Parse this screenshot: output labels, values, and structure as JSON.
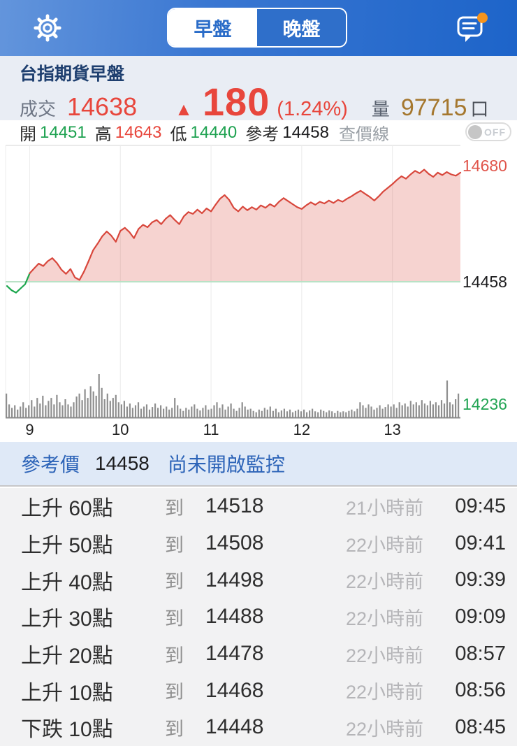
{
  "top_bar": {
    "tabs": [
      {
        "label": "早盤",
        "selected": true
      },
      {
        "label": "晚盤",
        "selected": false
      }
    ],
    "icons": {
      "settings": "gear",
      "messages": "speech-bubble-with-badge"
    }
  },
  "header": {
    "title": "台指期貨早盤",
    "deal_label": "成交",
    "deal_value": "14638",
    "change_arrow": "▲",
    "change_value": "180",
    "change_pct": "(1.24%)",
    "volume_label": "量",
    "volume_value": "97715",
    "volume_unit": "口"
  },
  "stats": {
    "open_label": "開",
    "open": "14451",
    "high_label": "高",
    "high": "14643",
    "low_label": "低",
    "low": "14440",
    "ref_label": "參考",
    "ref": "14458",
    "price_line_label": "查價線",
    "toggle_state": "OFF"
  },
  "chart_data": {
    "type": "area",
    "session_start": "08:45",
    "session_end": "13:45",
    "sample_interval_min": 3,
    "x_ticks": [
      "9",
      "10",
      "11",
      "12",
      "13"
    ],
    "x_tick_minutes": [
      15,
      75,
      135,
      195,
      255
    ],
    "ylim": [
      14236,
      14680
    ],
    "ref_price": 14458,
    "open": 14451,
    "high": 14643,
    "low": 14440,
    "close": 14638,
    "y_labels": [
      {
        "value": "14680",
        "role": "scale-high"
      },
      {
        "value": "14458",
        "role": "reference"
      },
      {
        "value": "14236",
        "role": "scale-low"
      }
    ],
    "prices": [
      14451,
      14444,
      14440,
      14447,
      14454,
      14472,
      14480,
      14488,
      14484,
      14492,
      14497,
      14489,
      14478,
      14471,
      14479,
      14465,
      14461,
      14475,
      14492,
      14510,
      14521,
      14533,
      14541,
      14534,
      14524,
      14542,
      14547,
      14540,
      14530,
      14545,
      14552,
      14548,
      14556,
      14560,
      14553,
      14562,
      14568,
      14560,
      14553,
      14566,
      14573,
      14570,
      14577,
      14571,
      14579,
      14574,
      14585,
      14595,
      14601,
      14593,
      14580,
      14574,
      14582,
      14576,
      14581,
      14577,
      14584,
      14580,
      14586,
      14582,
      14590,
      14596,
      14591,
      14586,
      14581,
      14578,
      14584,
      14589,
      14585,
      14590,
      14587,
      14592,
      14588,
      14593,
      14590,
      14595,
      14599,
      14604,
      14608,
      14603,
      14598,
      14592,
      14599,
      14607,
      14613,
      14619,
      14626,
      14632,
      14628,
      14635,
      14641,
      14637,
      14643,
      14636,
      14631,
      14638,
      14634,
      14639,
      14635,
      14633,
      14638
    ],
    "volumes_normalized": [
      0.55,
      0.3,
      0.22,
      0.28,
      0.18,
      0.25,
      0.35,
      0.22,
      0.28,
      0.4,
      0.25,
      0.45,
      0.32,
      0.5,
      0.28,
      0.38,
      0.45,
      0.3,
      0.52,
      0.35,
      0.28,
      0.42,
      0.3,
      0.25,
      0.35,
      0.48,
      0.55,
      0.4,
      0.65,
      0.45,
      0.72,
      0.6,
      0.5,
      1.0,
      0.68,
      0.42,
      0.55,
      0.38,
      0.45,
      0.52,
      0.35,
      0.3,
      0.38,
      0.25,
      0.32,
      0.22,
      0.28,
      0.35,
      0.2,
      0.25,
      0.3,
      0.18,
      0.24,
      0.32,
      0.22,
      0.28,
      0.2,
      0.25,
      0.18,
      0.22,
      0.45,
      0.28,
      0.2,
      0.15,
      0.22,
      0.18,
      0.25,
      0.3,
      0.2,
      0.16,
      0.22,
      0.28,
      0.18,
      0.2,
      0.28,
      0.35,
      0.22,
      0.3,
      0.18,
      0.25,
      0.32,
      0.2,
      0.15,
      0.22,
      0.35,
      0.25,
      0.18,
      0.2,
      0.15,
      0.12,
      0.18,
      0.15,
      0.22,
      0.18,
      0.25,
      0.15,
      0.2,
      0.12,
      0.16,
      0.2,
      0.14,
      0.18,
      0.12,
      0.15,
      0.18,
      0.14,
      0.18,
      0.12,
      0.16,
      0.2,
      0.14,
      0.12,
      0.18,
      0.15,
      0.12,
      0.16,
      0.14,
      0.1,
      0.15,
      0.12,
      0.14,
      0.12,
      0.15,
      0.18,
      0.14,
      0.2,
      0.35,
      0.28,
      0.22,
      0.3,
      0.25,
      0.18,
      0.22,
      0.28,
      0.2,
      0.24,
      0.3,
      0.25,
      0.3,
      0.22,
      0.35,
      0.28,
      0.32,
      0.25,
      0.38,
      0.3,
      0.35,
      0.28,
      0.4,
      0.32,
      0.28,
      0.38,
      0.3,
      0.35,
      0.28,
      0.4,
      0.32,
      0.85,
      0.35,
      0.3,
      0.42,
      0.55
    ],
    "colors": {
      "line_up": "#d8473c",
      "line_below_ref": "#1ba64d",
      "area_fill": "rgba(217,72,60,0.24)",
      "reference_line": "#b9e2c6",
      "volume_bar": "#8f8f8f",
      "grid": "#ececec"
    }
  },
  "banner": {
    "ref_label": "參考價",
    "ref_value": "14458",
    "status": "尚未開啟監控"
  },
  "alerts": [
    {
      "label": "上升 60點",
      "to": "到",
      "price": "14518",
      "ago": "21小時前",
      "time": "09:45"
    },
    {
      "label": "上升 50點",
      "to": "到",
      "price": "14508",
      "ago": "22小時前",
      "time": "09:41"
    },
    {
      "label": "上升 40點",
      "to": "到",
      "price": "14498",
      "ago": "22小時前",
      "time": "09:39"
    },
    {
      "label": "上升 30點",
      "to": "到",
      "price": "14488",
      "ago": "22小時前",
      "time": "09:09"
    },
    {
      "label": "上升 20點",
      "to": "到",
      "price": "14478",
      "ago": "22小時前",
      "time": "08:57"
    },
    {
      "label": "上升 10點",
      "to": "到",
      "price": "14468",
      "ago": "22小時前",
      "time": "08:56"
    },
    {
      "label": "下跌 10點",
      "to": "到",
      "price": "14448",
      "ago": "22小時前",
      "time": "08:45"
    }
  ],
  "colors": {
    "topbar_blue": "#2a6cc8",
    "up_red": "#e8463c",
    "down_green": "#1fa251",
    "volume_brown": "#a5772e",
    "banner_blue": "#2d64b8",
    "badge_orange": "#f5941e"
  }
}
